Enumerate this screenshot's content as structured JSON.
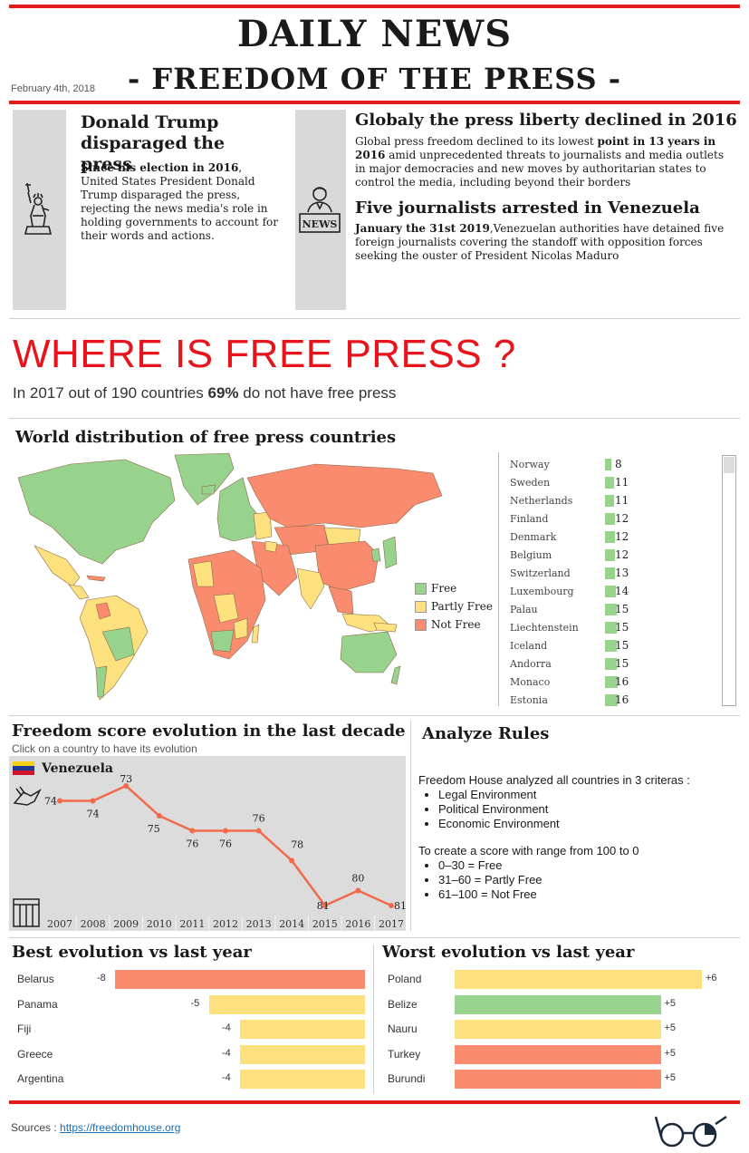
{
  "masthead": {
    "title": "DAILY NEWS",
    "subtitle": "- FREEDOM OF THE PRESS -",
    "date": "February 4th, 2018"
  },
  "stories": {
    "trump": {
      "title": "Donald Trump disparaged the press",
      "lead": "Since his election in 2016",
      "body": ", United States President Donald Trump disparaged the press, rejecting the news media's role in holding governments to account for their words and actions."
    },
    "global": {
      "title": "Globaly the press liberty declined in 2016",
      "body_start": "Global press freedom declined to its lowest ",
      "body_bold": "point in 13 years in 2016",
      "body_end": " amid unprecedented threats to journalists and media outlets in major democracies and new moves by authoritarian states to control the media, including beyond their borders"
    },
    "venezuela": {
      "title": "Five journalists arrested in Venezuela",
      "lead": "January the 31st 2019",
      "body": ",Venezuelan authorities have detained five foreign journalists covering the standoff with opposition forces seeking the ouster of President Nicolas Maduro"
    }
  },
  "headline": {
    "title": "WHERE IS FREE PRESS ?",
    "stat_start": "In 2017 out of 190 countries ",
    "stat_bold": "69%",
    "stat_end": " do not have free press"
  },
  "map": {
    "title": "World distribution of free press countries",
    "legend": [
      "Free",
      "Partly Free",
      "Not Free"
    ],
    "colors": {
      "free": "#97d38c",
      "partly": "#fde17e",
      "notfree": "#fa8b6f"
    }
  },
  "ranking": [
    {
      "country": "Norway",
      "score": "8"
    },
    {
      "country": "Sweden",
      "score": "11"
    },
    {
      "country": "Netherlands",
      "score": "11"
    },
    {
      "country": "Finland",
      "score": "12"
    },
    {
      "country": "Denmark",
      "score": "12"
    },
    {
      "country": "Belgium",
      "score": "12"
    },
    {
      "country": "Switzerland",
      "score": "13"
    },
    {
      "country": "Luxembourg",
      "score": "14"
    },
    {
      "country": "Palau",
      "score": "15"
    },
    {
      "country": "Liechtenstein",
      "score": "15"
    },
    {
      "country": "Iceland",
      "score": "15"
    },
    {
      "country": "Andorra",
      "score": "15"
    },
    {
      "country": "Monaco",
      "score": "16"
    },
    {
      "country": "Estonia",
      "score": "16"
    }
  ],
  "evolution": {
    "title": "Freedom score evolution in the last decade",
    "subtitle": "Click on a country to have its evolution",
    "country": "Venezuela"
  },
  "chart_data": {
    "type": "line",
    "title": "Venezuela",
    "x": [
      "2007",
      "2008",
      "2009",
      "2010",
      "2011",
      "2012",
      "2013",
      "2014",
      "2015",
      "2016",
      "2017"
    ],
    "series": [
      {
        "name": "Venezuela",
        "values": [
          74,
          74,
          73,
          75,
          76,
          76,
          76,
          78,
          81,
          80,
          81
        ]
      }
    ],
    "color": "#f26a4b",
    "grid": false
  },
  "rules": {
    "title": "Analyze Rules",
    "intro": "Freedom House analyzed all countries in 3 criteras :",
    "criteria": [
      "Legal Environment",
      "Political Environment",
      "Economic Environment"
    ],
    "scale_intro": "To create a score with range from 100 to 0",
    "scale": [
      "0–30 = Free",
      "31–60 = Partly Free",
      "61–100 = Not Free"
    ]
  },
  "best": {
    "title": "Best evolution vs last year",
    "rows": [
      {
        "country": "Belarus",
        "delta": -8,
        "label": "-8",
        "status": "notfree"
      },
      {
        "country": "Panama",
        "delta": -5,
        "label": "-5",
        "status": "partly"
      },
      {
        "country": "Fiji",
        "delta": -4,
        "label": "-4",
        "status": "partly"
      },
      {
        "country": "Greece",
        "delta": -4,
        "label": "-4",
        "status": "partly"
      },
      {
        "country": "Argentina",
        "delta": -4,
        "label": "-4",
        "status": "partly"
      }
    ]
  },
  "worst": {
    "title": "Worst evolution vs last year",
    "rows": [
      {
        "country": "Poland",
        "delta": 6,
        "label": "+6",
        "status": "partly"
      },
      {
        "country": "Belize",
        "delta": 5,
        "label": "+5",
        "status": "free"
      },
      {
        "country": "Nauru",
        "delta": 5,
        "label": "+5",
        "status": "partly"
      },
      {
        "country": "Turkey",
        "delta": 5,
        "label": "+5",
        "status": "notfree"
      },
      {
        "country": "Burundi",
        "delta": 5,
        "label": "+5",
        "status": "notfree"
      }
    ]
  },
  "footer": {
    "label": "Sources : ",
    "link": "https://freedomhouse.org"
  }
}
